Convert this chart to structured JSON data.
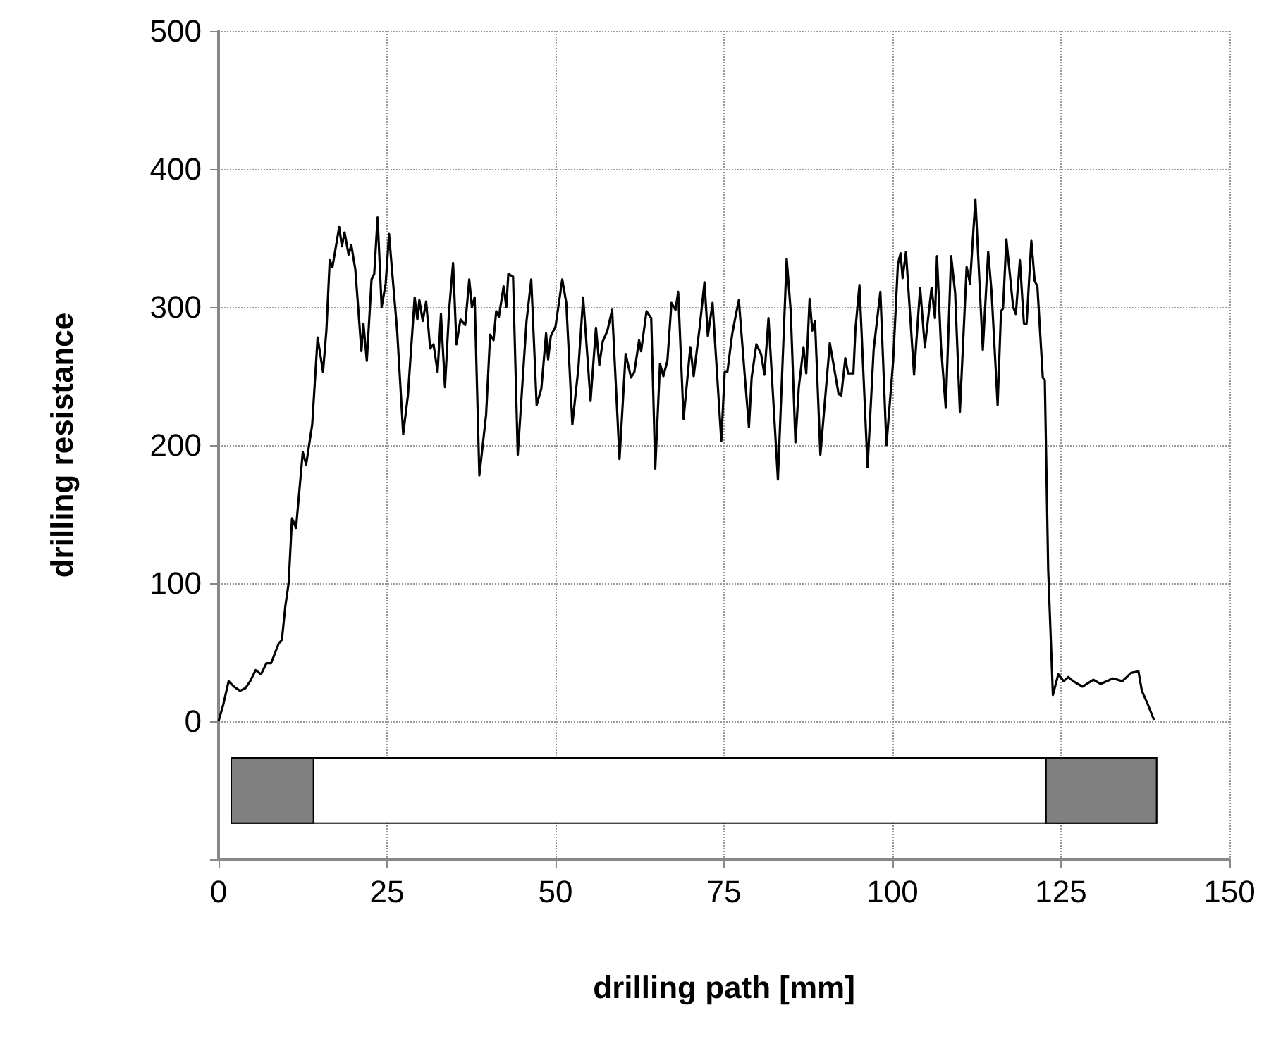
{
  "chart_data": {
    "type": "line",
    "xlabel": "drilling path [mm]",
    "ylabel": "drilling resistance",
    "xlim": [
      0,
      150
    ],
    "xticks": [
      0,
      25,
      50,
      75,
      100,
      125,
      150
    ],
    "ylim": [
      -100,
      500
    ],
    "yticks": [
      {
        "value": -100,
        "label": null
      },
      0,
      100,
      200,
      300,
      400,
      500
    ],
    "grid": true,
    "marker": "none",
    "line_style": "solid",
    "series": [
      {
        "color": "#000000",
        "x": [
          0,
          0.7,
          1.5,
          2.3,
          3.2,
          4,
          4.7,
          5.5,
          6.3,
          7.1,
          7.8,
          8.9,
          9.4,
          9.9,
          10.4,
          10.9,
          11.5,
          12.5,
          13,
          13.9,
          14.7,
          15.5,
          16,
          16.5,
          16.9,
          17.9,
          18.3,
          18.7,
          19.3,
          19.7,
          20.3,
          21.2,
          21.5,
          22,
          22.7,
          23.1,
          23.6,
          24.2,
          24.8,
          25.3,
          25.7,
          26.5,
          27.4,
          28.1,
          29.1,
          29.5,
          29.8,
          30.3,
          30.8,
          31.4,
          31.9,
          32.5,
          33,
          33.6,
          34.2,
          34.8,
          35.3,
          35.9,
          36.6,
          37.2,
          37.6,
          38,
          38.7,
          39.7,
          40.3,
          40.8,
          41.2,
          41.6,
          42.3,
          42.7,
          43,
          43.7,
          44.4,
          45.7,
          46.4,
          47.2,
          47.9,
          48.6,
          48.9,
          49.3,
          50,
          51,
          51.6,
          52.5,
          53.4,
          54.1,
          55.2,
          56,
          56.5,
          57,
          57.7,
          58.4,
          59.5,
          60.4,
          61.2,
          61.7,
          62.4,
          62.7,
          63.5,
          64.2,
          64.8,
          65.5,
          66,
          66.6,
          67.2,
          67.8,
          68.2,
          69,
          70,
          70.5,
          71.4,
          72.1,
          72.6,
          73.3,
          74.6,
          75.1,
          75.5,
          76.2,
          76.7,
          77.2,
          78.1,
          78.7,
          79.1,
          79.8,
          80.5,
          81,
          81.6,
          83,
          84.3,
          84.9,
          85.6,
          86.1,
          86.8,
          87.2,
          87.7,
          88.1,
          88.5,
          89.3,
          90.7,
          92,
          92.4,
          93,
          93.4,
          94.2,
          94.5,
          95.1,
          96.3,
          97.2,
          98.2,
          99.1,
          100.1,
          100.8,
          101.2,
          101.5,
          102,
          103.2,
          104.1,
          104.8,
          105.8,
          106.3,
          106.6,
          107.2,
          107.9,
          108.7,
          109.3,
          110,
          111,
          111.5,
          112.3,
          113.4,
          114.2,
          114.7,
          115.6,
          116.1,
          116.4,
          116.9,
          117.9,
          118.3,
          118.9,
          119.5,
          119.9,
          120.6,
          121.1,
          121.5,
          122.3,
          122.6,
          123.1,
          123.8,
          124.6,
          125.4,
          126.1,
          126.8,
          128.2,
          129.8,
          130.9,
          132.7,
          134.1,
          135.4,
          136.5,
          137,
          137.9,
          138.8
        ],
        "values": [
          0,
          12,
          29,
          25,
          22,
          24,
          29,
          37,
          34,
          42,
          42,
          56,
          59,
          83,
          100,
          147,
          140,
          195,
          186,
          215,
          278,
          253,
          283,
          334,
          329,
          358,
          344,
          354,
          338,
          345,
          327,
          268,
          288,
          261,
          320,
          324,
          365,
          300,
          317,
          353,
          329,
          283,
          208,
          236,
          307,
          291,
          305,
          290,
          304,
          270,
          273,
          253,
          295,
          242,
          297,
          332,
          273,
          291,
          287,
          320,
          300,
          307,
          178,
          222,
          280,
          276,
          297,
          293,
          315,
          300,
          324,
          322,
          193,
          290,
          320,
          229,
          241,
          281,
          262,
          279,
          286,
          320,
          303,
          215,
          256,
          307,
          232,
          285,
          258,
          275,
          283,
          298,
          190,
          266,
          249,
          253,
          276,
          268,
          297,
          292,
          183,
          259,
          250,
          261,
          303,
          298,
          311,
          219,
          271,
          250,
          286,
          318,
          279,
          303,
          203,
          253,
          253,
          280,
          293,
          305,
          249,
          213,
          249,
          273,
          266,
          251,
          292,
          175,
          335,
          297,
          202,
          242,
          271,
          252,
          306,
          283,
          290,
          193,
          274,
          237,
          236,
          263,
          252,
          252,
          284,
          316,
          184,
          269,
          311,
          200,
          261,
          331,
          339,
          321,
          340,
          251,
          314,
          271,
          314,
          292,
          337,
          271,
          227,
          337,
          310,
          224,
          329,
          317,
          378,
          269,
          340,
          311,
          229,
          297,
          299,
          349,
          300,
          295,
          334,
          288,
          288,
          348,
          319,
          315,
          249,
          247,
          110,
          19,
          34,
          29,
          32,
          29,
          25,
          30,
          27,
          31,
          29,
          35,
          36,
          22,
          12,
          1
        ]
      }
    ]
  }
}
